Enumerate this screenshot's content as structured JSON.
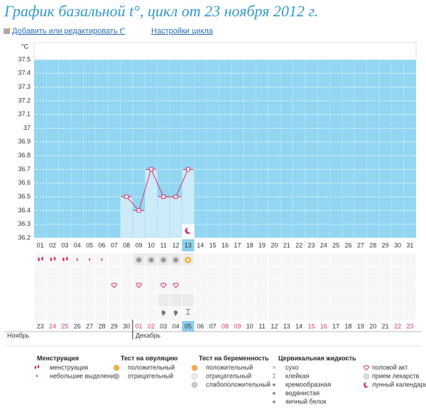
{
  "title": "График базальной t°, цикл от 23 ноября 2012 г.",
  "links": [
    "Добавить или редактировать t°",
    "Настройки цикла"
  ],
  "chart_data": {
    "type": "line",
    "y_label": "°C",
    "categories": [
      "01",
      "02",
      "03",
      "04",
      "05",
      "06",
      "07",
      "08",
      "09",
      "10",
      "11",
      "12",
      "13",
      "14",
      "15",
      "16",
      "17",
      "18",
      "19",
      "20",
      "21",
      "22",
      "23",
      "24",
      "25",
      "26",
      "27",
      "28",
      "29",
      "30",
      "31"
    ],
    "values": [
      null,
      null,
      null,
      null,
      null,
      null,
      null,
      36.5,
      36.4,
      36.7,
      36.5,
      36.5,
      36.7,
      null,
      null,
      null,
      null,
      null,
      null,
      null,
      null,
      null,
      null,
      null,
      null,
      null,
      null,
      null,
      null,
      null,
      null
    ],
    "color": "#d6336c",
    "bar_color": "#cdeaf9",
    "background": "#92d6f2",
    "ylim": [
      36.2,
      37.5
    ],
    "yticks": [
      36.2,
      36.3,
      36.4,
      36.5,
      36.6,
      36.7,
      36.8,
      36.9,
      37,
      37.1,
      37.2,
      37.3,
      37.4,
      37.5
    ],
    "grid": true
  },
  "calendar": {
    "dates": [
      "23",
      "24",
      "25",
      "26",
      "27",
      "28",
      "29",
      "30",
      "01",
      "02",
      "03",
      "04",
      "05",
      "06",
      "07",
      "08",
      "09",
      "10",
      "11",
      "12",
      "13",
      "14",
      "15",
      "16",
      "17",
      "18",
      "19",
      "20",
      "21",
      "22",
      "23"
    ],
    "weekend": [
      false,
      true,
      true,
      false,
      false,
      false,
      false,
      false,
      true,
      true,
      false,
      false,
      false,
      false,
      false,
      true,
      true,
      false,
      false,
      false,
      false,
      false,
      true,
      true,
      false,
      false,
      false,
      false,
      false,
      true,
      true
    ],
    "months": [
      "Ноябрь",
      "Декабрь"
    ]
  },
  "legend": {
    "groups": [
      {
        "title": "Менструация",
        "items": [
          "менструация",
          "небольшие выделения"
        ]
      },
      {
        "title": "Тест на овуляцию",
        "items": [
          "положительный",
          "отрицательный"
        ]
      },
      {
        "title": "Тест на беременность",
        "items": [
          "положительный",
          "отрицательный",
          "слабоположительный"
        ]
      },
      {
        "title": "Цервикальная жидкость",
        "items": [
          "сухо",
          "клейкая",
          "кремообразная",
          "водянистая",
          "яичный белок"
        ]
      }
    ],
    "other_items": [
      "половой акт",
      "прием лекарств",
      "лунный календарь"
    ]
  }
}
